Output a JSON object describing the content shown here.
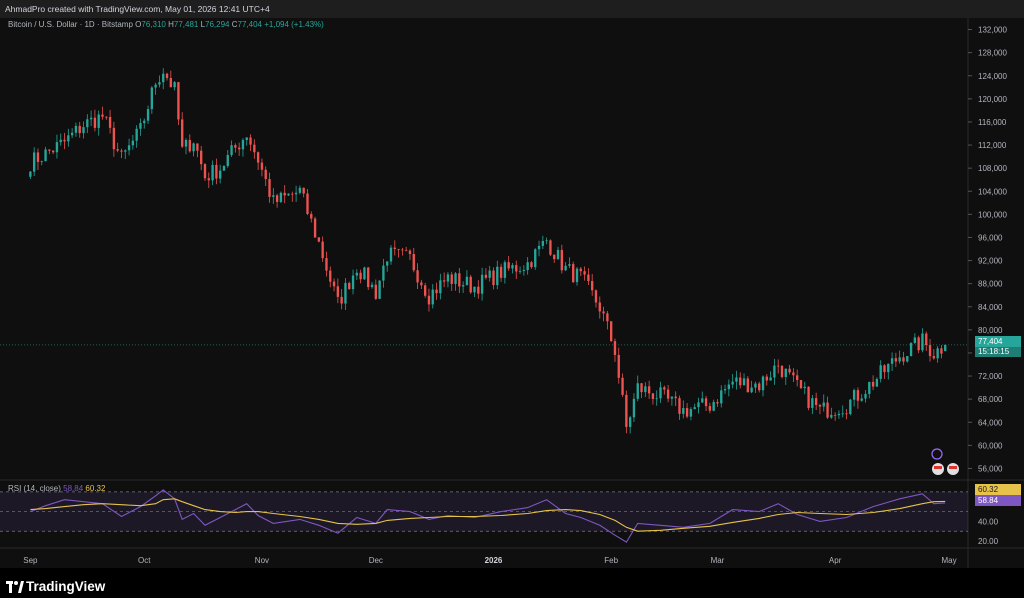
{
  "header": {
    "attribution": "AhmadPro created with TradingView.com, May 01, 2026 12:41 UTC+4"
  },
  "legend": {
    "symbol": "Bitcoin / U.S. Dollar · 1D · Bitstamp",
    "o_label": "O",
    "o_value": "76,310",
    "h_label": "H",
    "h_value": "77,481",
    "l_label": "L",
    "l_value": "76,294",
    "c_label": "C",
    "c_value": "77,404",
    "change": "+1,094 (+1.43%)"
  },
  "rsi_legend": {
    "label": "RSI (14, close)",
    "rsi_value": "58.84",
    "ma_value": "60.32"
  },
  "price_tag": {
    "price": "77,404",
    "countdown": "15:18:15"
  },
  "rsi_tags": {
    "ma": "60.32",
    "rsi": "58.84"
  },
  "brand": {
    "name": "TradingView"
  },
  "colors": {
    "up": "#26a69a",
    "down": "#ef5350",
    "rsi_line": "#7e57c2",
    "rsi_ma": "#e6c24a",
    "background": "#0f0f0f"
  },
  "chart_data": [
    {
      "type": "candlestick",
      "title": "Bitcoin / U.S. Dollar · 1D · Bitstamp",
      "ylim": [
        54000,
        134000
      ],
      "y_ticks": [
        "132,000",
        "128,000",
        "124,000",
        "120,000",
        "116,000",
        "112,000",
        "108,000",
        "104,000",
        "100,000",
        "96,000",
        "92,000",
        "88,000",
        "84,000",
        "80,000",
        "76,000",
        "72,000",
        "68,000",
        "64,000",
        "60,000",
        "56,000"
      ],
      "x_ticks": [
        "Sep",
        "Oct",
        "Nov",
        "Dec",
        "2026",
        "Feb",
        "Mar",
        "Apr",
        "May"
      ],
      "close_series": [
        [
          "2025-09-01",
          109000
        ],
        [
          "2025-09-05",
          110500
        ],
        [
          "2025-09-10",
          112500
        ],
        [
          "2025-09-15",
          115500
        ],
        [
          "2025-09-20",
          117000
        ],
        [
          "2025-09-25",
          109500
        ],
        [
          "2025-09-30",
          114500
        ],
        [
          "2025-10-04",
          123000
        ],
        [
          "2025-10-06",
          125000
        ],
        [
          "2025-10-09",
          121500
        ],
        [
          "2025-10-11",
          111000
        ],
        [
          "2025-10-14",
          113000
        ],
        [
          "2025-10-17",
          106500
        ],
        [
          "2025-10-21",
          108000
        ],
        [
          "2025-10-25",
          111500
        ],
        [
          "2025-10-28",
          114000
        ],
        [
          "2025-10-31",
          109500
        ],
        [
          "2025-11-04",
          102000
        ],
        [
          "2025-11-11",
          104000
        ],
        [
          "2025-11-16",
          95000
        ],
        [
          "2025-11-21",
          84500
        ],
        [
          "2025-11-26",
          91000
        ],
        [
          "2025-12-01",
          86500
        ],
        [
          "2025-12-04",
          93000
        ],
        [
          "2025-12-10",
          92300
        ],
        [
          "2025-12-15",
          86000
        ],
        [
          "2025-12-20",
          89000
        ],
        [
          "2025-12-27",
          87500
        ],
        [
          "2026-01-03",
          90000
        ],
        [
          "2026-01-10",
          91500
        ],
        [
          "2026-01-15",
          95500
        ],
        [
          "2026-01-20",
          90500
        ],
        [
          "2026-01-24",
          89000
        ],
        [
          "2026-01-29",
          84000
        ],
        [
          "2026-02-02",
          76500
        ],
        [
          "2026-02-05",
          63000
        ],
        [
          "2026-02-08",
          70000
        ],
        [
          "2026-02-14",
          68500
        ],
        [
          "2026-02-20",
          66000
        ],
        [
          "2026-02-27",
          67000
        ],
        [
          "2026-03-05",
          71000
        ],
        [
          "2026-03-12",
          70500
        ],
        [
          "2026-03-17",
          74000
        ],
        [
          "2026-03-22",
          70000
        ],
        [
          "2026-03-28",
          66000
        ],
        [
          "2026-04-04",
          67000
        ],
        [
          "2026-04-11",
          71000
        ],
        [
          "2026-04-18",
          75500
        ],
        [
          "2026-04-24",
          78000
        ],
        [
          "2026-04-27",
          76000
        ],
        [
          "2026-04-30",
          77404
        ]
      ],
      "last_price": 77404
    },
    {
      "type": "line",
      "title": "RSI (14, close)",
      "ylim": [
        15,
        78
      ],
      "y_ticks": [
        "40.00",
        "20.00"
      ],
      "reference_lines": [
        70,
        50,
        30
      ],
      "series": [
        {
          "name": "RSI",
          "values": [
            50,
            56,
            62,
            60,
            58,
            45,
            55,
            66,
            72,
            63,
            42,
            48,
            36,
            44,
            52,
            58,
            46,
            38,
            42,
            36,
            28,
            44,
            38,
            52,
            50,
            42,
            46,
            44,
            50,
            54,
            62,
            48,
            44,
            36,
            26,
            19,
            38,
            36,
            34,
            38,
            52,
            50,
            58,
            47,
            40,
            44,
            55,
            63,
            68,
            58,
            58.84
          ]
        },
        {
          "name": "MA",
          "values": [
            52,
            53,
            55,
            57,
            58,
            57,
            56,
            58,
            62,
            63,
            60,
            56,
            52,
            50,
            49,
            50,
            50,
            48,
            45,
            42,
            38,
            37,
            38,
            41,
            43,
            44,
            45,
            45,
            46,
            48,
            51,
            52,
            51,
            47,
            41,
            34,
            30,
            31,
            33,
            35,
            39,
            43,
            47,
            49,
            48,
            47,
            49,
            53,
            58,
            60,
            60.32
          ]
        }
      ]
    }
  ]
}
